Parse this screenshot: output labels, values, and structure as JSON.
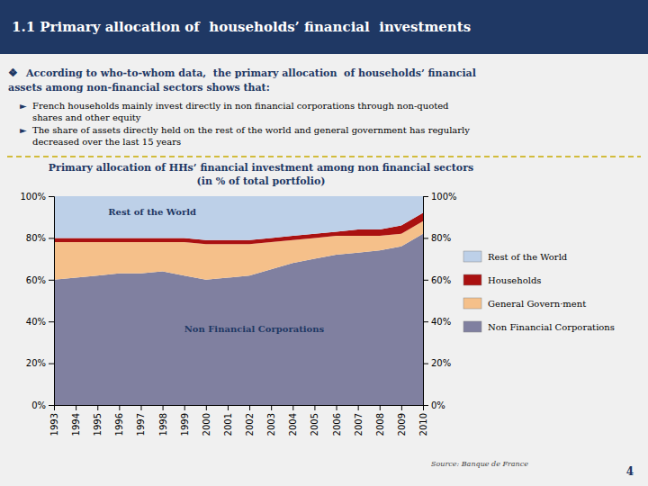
{
  "slide": {
    "title": "1.1 Primary allocation of  households’ financial  investments",
    "intro": {
      "symbol": "❖",
      "lines": [
        "According to who-to-whom data,  the primary allocation  of households’ financial",
        "assets among non-financial sectors shows that:"
      ]
    },
    "points": [
      {
        "symbol": "►",
        "lines": [
          "French households mainly invest directly in non financial corporations through non-quoted",
          "shares and other equity"
        ]
      },
      {
        "symbol": "►",
        "lines": [
          "The share of assets directly held on the rest of the world and general government has regularly",
          "decreased over the last 15 years"
        ]
      }
    ],
    "source": "Source: Banque de France",
    "page_number": "4"
  },
  "chart_data": {
    "type": "area",
    "stacked": true,
    "title": "Primary allocation of HHs’ financial investment among non financial sectors",
    "subtitle": "(in % of total portfolio)",
    "x": [
      1993,
      1994,
      1995,
      1996,
      1997,
      1998,
      1999,
      2000,
      2001,
      2002,
      2003,
      2004,
      2005,
      2006,
      2007,
      2008,
      2009,
      2010
    ],
    "xlim": [
      1993,
      2010
    ],
    "xticks": [
      1993,
      1994,
      1995,
      1996,
      1997,
      1998,
      1999,
      2000,
      2001,
      2002,
      2003,
      2004,
      2005,
      2006,
      2007,
      2008,
      2009,
      2010
    ],
    "ylim": [
      0,
      100
    ],
    "yticks": [
      {
        "value": 0,
        "label": "0%"
      },
      {
        "value": 20,
        "label": "20%"
      },
      {
        "value": 40,
        "label": "40%"
      },
      {
        "value": 60,
        "label": "60%"
      },
      {
        "value": 80,
        "label": "80%"
      },
      {
        "value": 100,
        "label": "100%"
      }
    ],
    "y2lim": [
      0,
      100
    ],
    "y2ticks": [
      {
        "value": 0,
        "label": "0%"
      },
      {
        "value": 20,
        "label": "20%"
      },
      {
        "value": 40,
        "label": "40%"
      },
      {
        "value": 60,
        "label": "60%"
      },
      {
        "value": 80,
        "label": "80%"
      },
      {
        "value": 100,
        "label": "100%"
      }
    ],
    "grid": false,
    "legend": "right",
    "series": [
      {
        "name": "Non Financial Corporations",
        "color": "#8080A0",
        "values": [
          60,
          61,
          62,
          63,
          63,
          64,
          62,
          60,
          61,
          62,
          65,
          68,
          70,
          72,
          73,
          74,
          76,
          82
        ]
      },
      {
        "name": "General Govern·ment",
        "color": "#F5C08A",
        "values": [
          18,
          17,
          16,
          15,
          15,
          14,
          16,
          17,
          16,
          15,
          13,
          11,
          10,
          9,
          8,
          7,
          6,
          6
        ]
      },
      {
        "name": "Households",
        "color": "#AA1111",
        "values": [
          2,
          2,
          2,
          2,
          2,
          2,
          2,
          2,
          2,
          2,
          2,
          2,
          2,
          2,
          3,
          3,
          4,
          4
        ]
      },
      {
        "name": "Rest of the World",
        "color": "#BDD0E8",
        "values": [
          20,
          20,
          20,
          20,
          20,
          20,
          20,
          21,
          21,
          21,
          20,
          19,
          18,
          17,
          16,
          16,
          14,
          8
        ]
      }
    ],
    "annotations": [
      {
        "text": "Rest of the World",
        "x": 1995.5,
        "y": 91
      },
      {
        "text": "Non Financial Corporations",
        "x": 1999,
        "y": 35
      }
    ]
  }
}
